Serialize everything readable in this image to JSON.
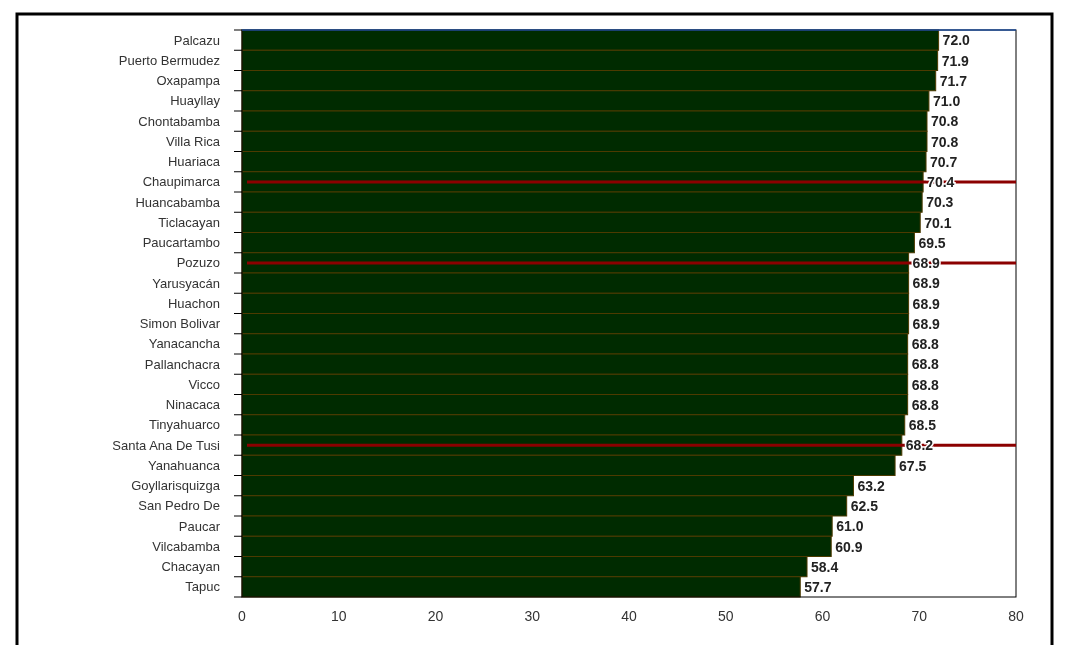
{
  "chart_data": {
    "type": "bar",
    "orientation": "horizontal",
    "categories": [
      "Palcazu",
      "Puerto Bermudez",
      "Oxapampa",
      "Huayllay",
      "Chontabamba",
      "Villa Rica",
      "Huariaca",
      "Chaupimarca",
      "Huancabamba",
      "Ticlacayan",
      "Paucartambo",
      "Pozuzo",
      "Yarusyacán",
      "Huachon",
      "Simon Bolivar",
      "Yanacancha",
      "Pallanchacra",
      "Vicco",
      "Ninacaca",
      "Tinyahuarco",
      "Santa Ana De Tusi",
      "Yanahuanca",
      "Goyllarisquizga",
      "San Pedro De",
      "Paucar",
      "Vilcabamba",
      "Chacayan",
      "Tapuc"
    ],
    "values": [
      72.0,
      71.9,
      71.7,
      71.0,
      70.8,
      70.8,
      70.7,
      70.4,
      70.3,
      70.1,
      69.5,
      68.9,
      68.9,
      68.9,
      68.9,
      68.8,
      68.8,
      68.8,
      68.8,
      68.5,
      68.2,
      67.5,
      63.2,
      62.5,
      61.0,
      60.9,
      58.4,
      57.7
    ],
    "value_labels": [
      "72.0",
      "71.9",
      "71.7",
      "71.0",
      "70.8",
      "70.8",
      "70.7",
      "70.4",
      "70.3",
      "70.1",
      "69.5",
      "68.9",
      "68.9",
      "68.9",
      "68.9",
      "68.8",
      "68.8",
      "68.8",
      "68.8",
      "68.5",
      "68.2",
      "67.5",
      "63.2",
      "62.5",
      "61.0",
      "60.9",
      "58.4",
      "57.7"
    ],
    "color": "#002b00",
    "xlim": [
      0,
      80
    ],
    "xticks": [
      0,
      10,
      20,
      30,
      40,
      50,
      60,
      70,
      80
    ],
    "ref_lines": [
      {
        "axis": "y",
        "value": "Chaupimarca",
        "color": "#8b0000"
      },
      {
        "axis": "y",
        "value": "Pozuzo",
        "color": "#8b0000"
      },
      {
        "axis": "y",
        "value": "Santa Ana De Tusi",
        "color": "#8b0000"
      }
    ],
    "grid": false
  }
}
